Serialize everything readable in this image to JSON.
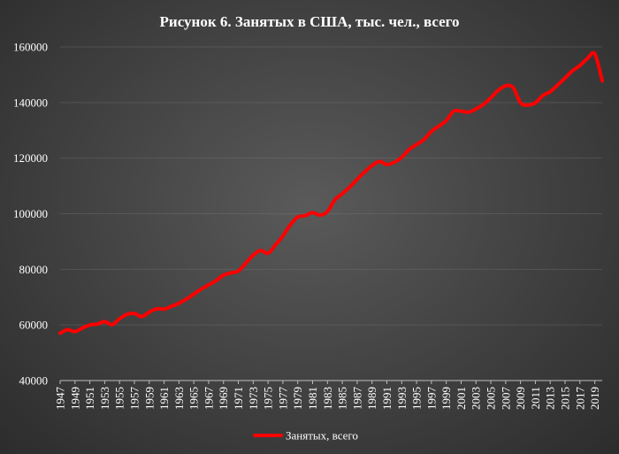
{
  "chart_data": {
    "type": "line",
    "title": "Рисунок 6. Занятых  в США, тыс. чел., всего",
    "xlabel": "",
    "ylabel": "",
    "ylim": [
      40000,
      160000
    ],
    "yticks": [
      40000,
      60000,
      80000,
      100000,
      120000,
      140000,
      160000
    ],
    "xlim": [
      1947,
      2020
    ],
    "xticks": [
      1947,
      1949,
      1951,
      1953,
      1955,
      1957,
      1959,
      1961,
      1963,
      1965,
      1967,
      1969,
      1971,
      1973,
      1975,
      1977,
      1979,
      1981,
      1983,
      1985,
      1987,
      1989,
      1991,
      1993,
      1995,
      1997,
      1999,
      2001,
      2003,
      2005,
      2007,
      2009,
      2011,
      2013,
      2015,
      2017,
      2019
    ],
    "grid": "horizontal",
    "legend": "bottom",
    "colors": {
      "line": "#ff0000"
    },
    "series": [
      {
        "name": "Занятых, всего",
        "x": [
          1947,
          1948,
          1949,
          1950,
          1951,
          1952,
          1953,
          1954,
          1955,
          1956,
          1957,
          1958,
          1959,
          1960,
          1961,
          1962,
          1963,
          1964,
          1965,
          1966,
          1967,
          1968,
          1969,
          1970,
          1971,
          1972,
          1973,
          1974,
          1975,
          1976,
          1977,
          1978,
          1979,
          1980,
          1981,
          1982,
          1983,
          1984,
          1985,
          1986,
          1987,
          1988,
          1989,
          1990,
          1991,
          1992,
          1993,
          1994,
          1995,
          1996,
          1997,
          1998,
          1999,
          2000,
          2001,
          2002,
          2003,
          2004,
          2005,
          2006,
          2007,
          2008,
          2009,
          2010,
          2011,
          2012,
          2013,
          2014,
          2015,
          2016,
          2017,
          2018,
          2019,
          2020
        ],
        "values": [
          57000,
          58300,
          57600,
          58900,
          60000,
          60300,
          61200,
          60100,
          62200,
          63800,
          64100,
          63000,
          64600,
          65800,
          65700,
          66700,
          67800,
          69300,
          71100,
          72900,
          74400,
          75900,
          77900,
          78700,
          79400,
          82200,
          85100,
          86800,
          85800,
          88800,
          92000,
          96000,
          98800,
          99300,
          100400,
          99500,
          100800,
          105000,
          107200,
          109600,
          112400,
          115000,
          117300,
          118800,
          117700,
          118500,
          120300,
          123100,
          124900,
          126700,
          129600,
          131500,
          133500,
          136900,
          136900,
          136500,
          137700,
          139300,
          141700,
          144400,
          146000,
          145400,
          139900,
          139100,
          139900,
          142500,
          143900,
          146300,
          148800,
          151400,
          153300,
          155800,
          157500,
          147800
        ]
      }
    ]
  }
}
